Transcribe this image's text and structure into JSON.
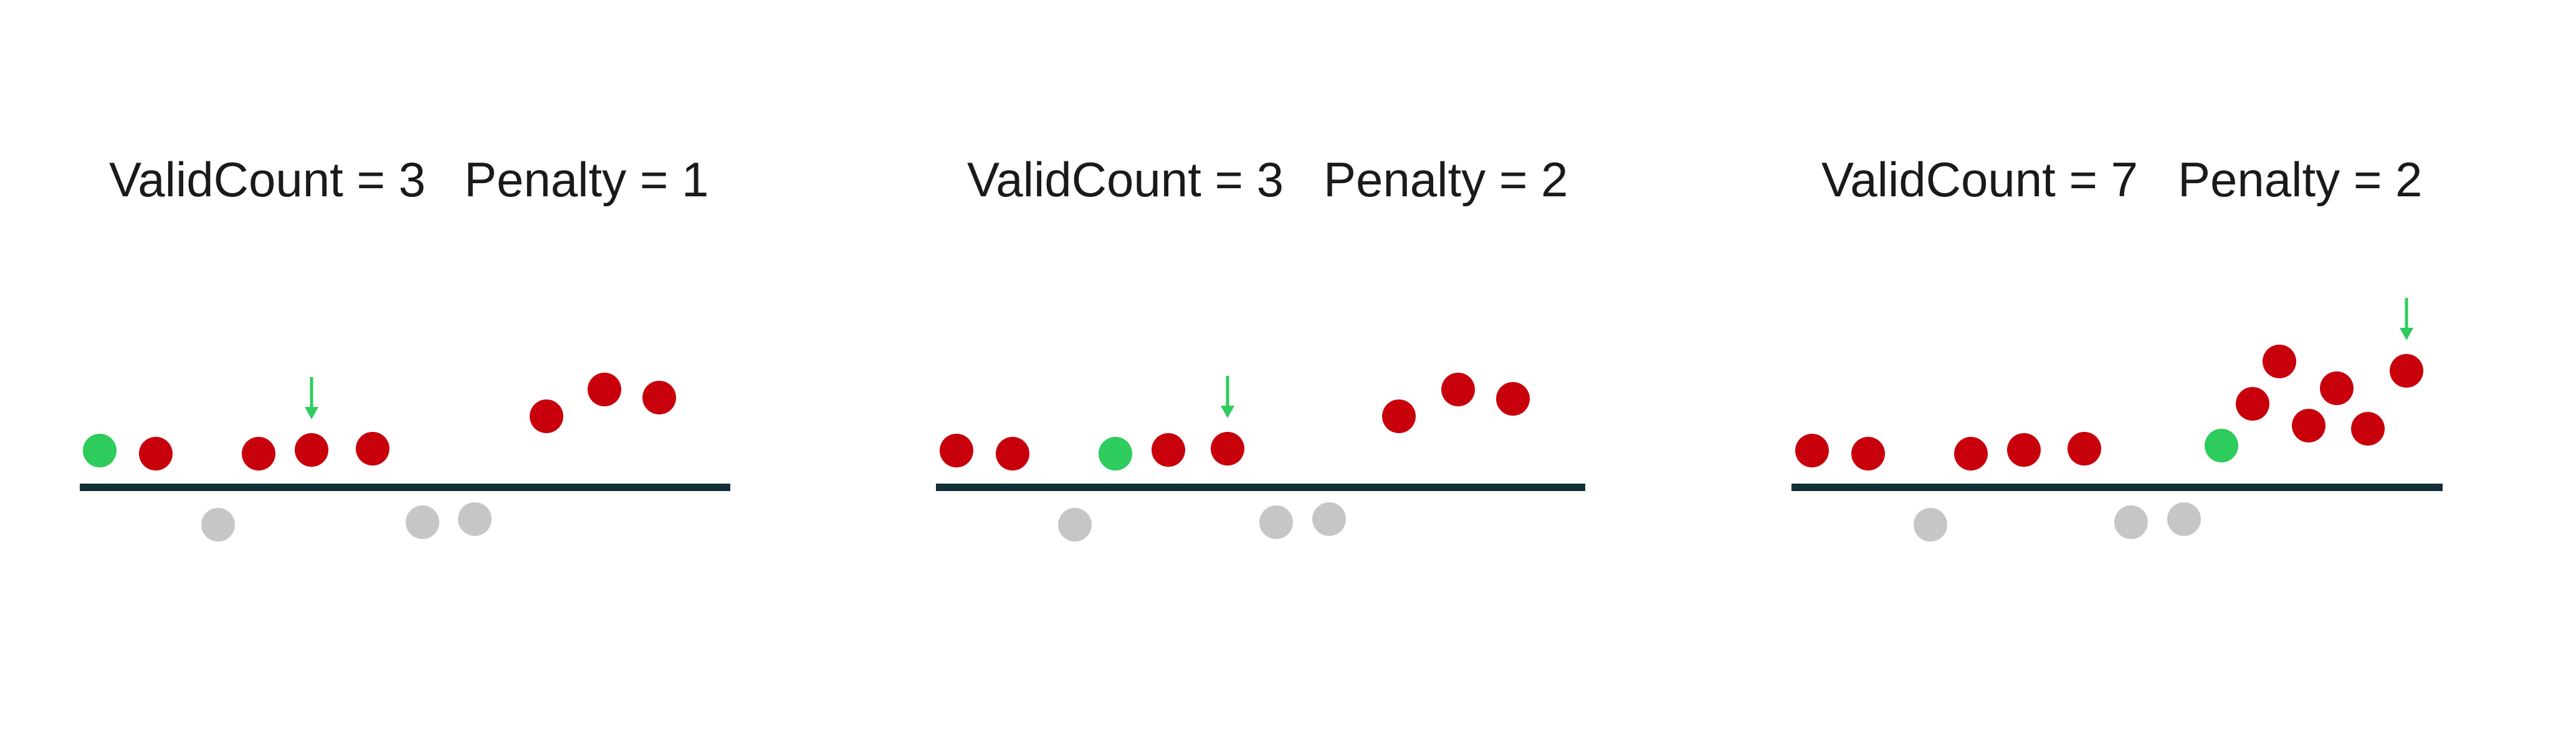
{
  "colors": {
    "background": "#ffffff",
    "baseline": "#13303a",
    "red_dot": "#c8000b",
    "green_dot": "#2dcc5c",
    "gray_dot": "#c6c6c6",
    "arrow": "#2dcc5c"
  },
  "panels": [
    {
      "valid_count_label": "ValidCount = 3",
      "penalty_label": "Penalty = 1",
      "valid_count": 3,
      "penalty": 1,
      "arrow_at_dot": 3,
      "dots": [
        {
          "color": "green"
        },
        {
          "color": "red"
        },
        {
          "color": "red"
        },
        {
          "color": "red"
        },
        {
          "color": "red"
        },
        {
          "color": "red"
        },
        {
          "color": "red"
        },
        {
          "color": "red"
        },
        {
          "color": "gray"
        },
        {
          "color": "gray"
        },
        {
          "color": "gray"
        }
      ]
    },
    {
      "valid_count_label": "ValidCount = 3",
      "penalty_label": "Penalty = 2",
      "valid_count": 3,
      "penalty": 2,
      "arrow_at_dot": 4,
      "dots": [
        {
          "color": "red"
        },
        {
          "color": "red"
        },
        {
          "color": "green"
        },
        {
          "color": "red"
        },
        {
          "color": "red"
        },
        {
          "color": "red"
        },
        {
          "color": "red"
        },
        {
          "color": "red"
        },
        {
          "color": "gray"
        },
        {
          "color": "gray"
        },
        {
          "color": "gray"
        }
      ]
    },
    {
      "valid_count_label": "ValidCount = 7",
      "penalty_label": "Penalty = 2",
      "valid_count": 7,
      "penalty": 2,
      "arrow_at_dot": 11,
      "dots": [
        {
          "color": "red"
        },
        {
          "color": "red"
        },
        {
          "color": "red"
        },
        {
          "color": "red"
        },
        {
          "color": "red"
        },
        {
          "color": "green"
        },
        {
          "color": "red"
        },
        {
          "color": "red"
        },
        {
          "color": "red"
        },
        {
          "color": "red"
        },
        {
          "color": "red"
        },
        {
          "color": "red"
        },
        {
          "color": "gray"
        },
        {
          "color": "gray"
        },
        {
          "color": "gray"
        }
      ]
    }
  ]
}
